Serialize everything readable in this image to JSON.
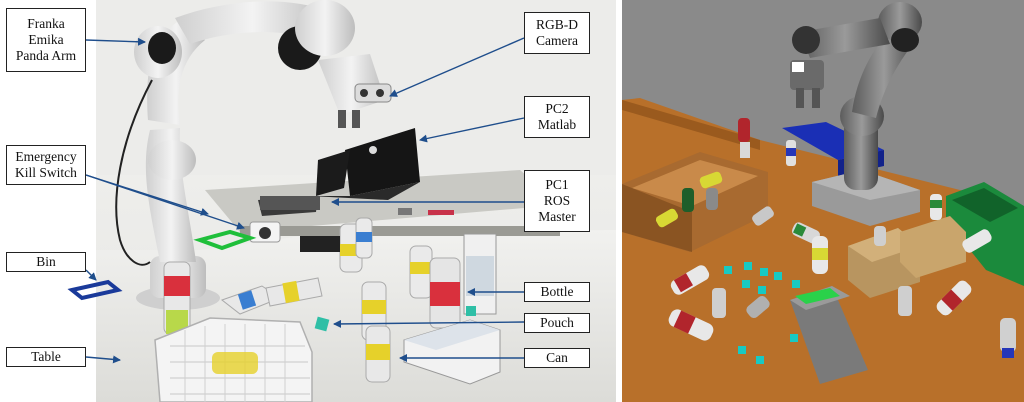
{
  "labels": {
    "franka": "Franka\nEmika\nPanda Arm",
    "emergency": "Emergency\nKill Switch",
    "bin": "Bin",
    "table": "Table",
    "rgbd": "RGB-D\nCamera",
    "pc2": "PC2\nMatlab",
    "pc1": "PC1\nROS\nMaster",
    "bottle": "Bottle",
    "pouch": "Pouch",
    "can": "Can"
  },
  "colors": {
    "arrow": "#1f4e8c",
    "bin_outline": "#1a3a9a",
    "green_outline": "#1fbf3a",
    "sim_floor": "#8a8a8a",
    "sim_table": "#b8702a",
    "sim_crate": "#a86a30",
    "sim_bin_blue": "#1a2fb5",
    "sim_bin_green": "#1b8a3c",
    "sim_pouch": "#19c9c2"
  }
}
